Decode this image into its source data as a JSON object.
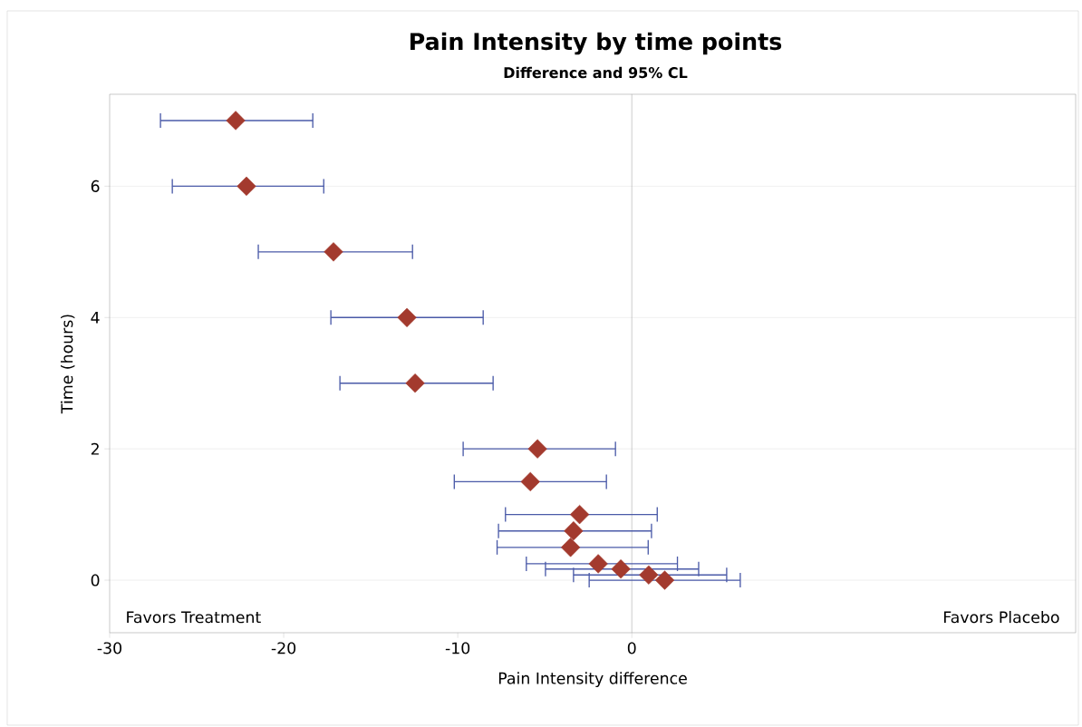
{
  "chart_data": {
    "type": "scatter",
    "title": "Pain Intensity by time points",
    "subtitle": "Difference and 95% CL",
    "xlabel": "Pain Intensity difference",
    "ylabel": "Time (hours)",
    "x": [
      -22.76,
      -22.14,
      -17.14,
      -12.92,
      -12.45,
      -5.42,
      -5.83,
      -3.0,
      -3.35,
      -3.52,
      -1.93,
      -0.63,
      0.97,
      1.89
    ],
    "values": [
      7,
      6,
      5,
      4,
      3,
      2,
      1.5,
      1,
      0.75,
      0.5,
      0.25,
      0.17,
      0.08,
      0
    ],
    "xerrors": [
      [
        -27.08,
        -18.33
      ],
      [
        -26.4,
        -17.7
      ],
      [
        -21.46,
        -12.6
      ],
      [
        -17.29,
        -8.54
      ],
      [
        -16.77,
        -7.97
      ],
      [
        -9.69,
        -0.94
      ],
      [
        -10.2,
        -1.46
      ],
      [
        -7.26,
        1.46
      ],
      [
        -7.66,
        1.13
      ],
      [
        -7.74,
        0.94
      ],
      [
        -6.06,
        2.62
      ],
      [
        -4.96,
        3.84
      ],
      [
        -3.35,
        5.45
      ],
      [
        -2.45,
        6.23
      ]
    ],
    "color": "#a33a2e",
    "marker": "diamond",
    "xlim": [
      -30,
      25.5
    ],
    "xticks": [
      -30,
      -20,
      -10,
      0
    ],
    "ylim": [
      -0.8,
      7.4
    ],
    "yticks": [
      0,
      2,
      4,
      6
    ],
    "grid": "y",
    "ref_lines": [
      {
        "axis": "x",
        "value": 0,
        "color": "#a0a0a0"
      }
    ],
    "annotations": [
      "Favors Treatment",
      "Favors Placebo"
    ]
  }
}
